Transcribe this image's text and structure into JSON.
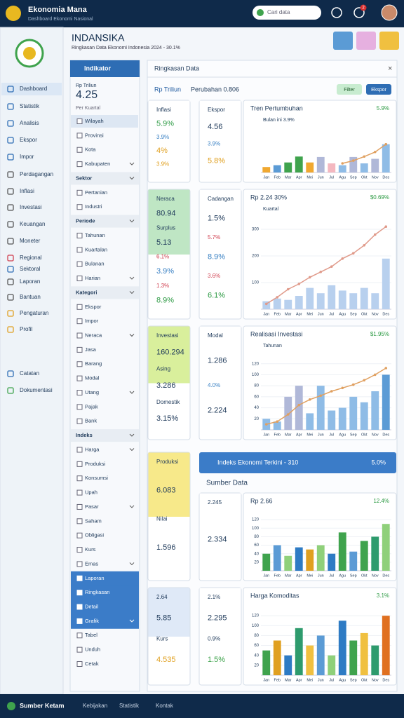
{
  "header": {
    "title": "Ekonomia Mana",
    "subtitle": "Dashboard Ekonomi Nasional",
    "search": "Cari data",
    "badge": "2"
  },
  "page": {
    "title": "INDANSIKA",
    "subtitle": "Ringkasan Data Ekonomi Indonesia 2024 - 30.1%"
  },
  "sidebar": [
    "Dashboard",
    "Statistik",
    "Analisis",
    "Ekspor",
    "Impor",
    "Perdagangan",
    "Inflasi",
    "Investasi",
    "Keuangan",
    "Moneter",
    "Regional",
    "Sektoral",
    "Laporan",
    "Bantuan",
    "Pengaturan",
    "Profil",
    "Catatan",
    "Dokumentasi"
  ],
  "filters": {
    "title": "Indikator",
    "value": "4.25",
    "unit": "Rp Triliun",
    "note": "Per Kuartal",
    "items": [
      {
        "label": "Wilayah",
        "style": "highlight"
      },
      "Provinsi",
      "Kota",
      "Kabupaten",
      {
        "label": "Sektor",
        "style": "header"
      },
      "Pertanian",
      "Industri",
      {
        "label": "Periode",
        "style": "header"
      },
      "Tahunan",
      "Kuartalan",
      "Bulanan",
      "Harian",
      {
        "label": "Kategori",
        "style": "header"
      },
      "Ekspor",
      "Impor",
      "Neraca",
      "Jasa",
      "Barang",
      "Modal",
      "Utang",
      "Pajak",
      "Bank",
      {
        "label": "Indeks",
        "style": "header"
      },
      "Harga",
      "Produksi",
      "Konsumsi",
      "Upah",
      "Pasar",
      "Saham",
      "Obligasi",
      "Kurs",
      "Emas",
      {
        "label": "Laporan",
        "style": "active"
      },
      {
        "label": "Ringkasan",
        "style": "active"
      },
      {
        "label": "Detail",
        "style": "active"
      },
      {
        "label": "Grafik",
        "style": "active"
      },
      "Tabel",
      "Unduh",
      "Cetak"
    ]
  },
  "main": {
    "title": "Ringkasan Data",
    "toolbar": "Rp Triliun",
    "toolbar_note": "Perubahan 0.806",
    "buttons": [
      "Filter",
      "Ekspor"
    ],
    "x_labels": [
      "Jan",
      "Feb",
      "Mar",
      "Apr",
      "Mei",
      "Jun",
      "Jul",
      "Agu",
      "Sep",
      "Okt",
      "Nov",
      "Des"
    ],
    "rows": [
      {
        "left": {
          "fill": "#ffffff",
          "items": [
            {
              "text": "Inflasi",
              "color": "#1f3a5a"
            },
            {
              "text": "5.9%",
              "color": "#2e9b45"
            },
            {
              "text": "3.9%",
              "color": "#3b82c4"
            },
            {
              "text": "4%",
              "color": "#e0a020"
            },
            {
              "text": "3.9%",
              "color": "#e0a020"
            }
          ]
        },
        "mid": {
          "fill": "#ffffff",
          "items": [
            {
              "text": "Ekspor",
              "color": "#1f3a5a"
            },
            {
              "text": "4.56",
              "color": "#1f3a5a"
            },
            {
              "text": "3.9%",
              "color": "#3b82c4"
            },
            {
              "text": "5.8%",
              "color": "#e0a020"
            }
          ]
        },
        "chart": {
          "title": "Tren Pertumbuhan",
          "badge": "5.9%",
          "note": "Bulan ini 3.9%",
          "ylim": [
            0,
            100
          ],
          "bars": [
            12,
            16,
            22,
            35,
            22,
            34,
            20,
            16,
            34,
            20,
            30,
            62
          ],
          "bar_colors": [
            "#f0a830",
            "#5b9bd5",
            "#3fa34d",
            "#3fa34d",
            "#f0a830",
            "#b0b8d8",
            "#f4b8c0",
            "#8fbce6",
            "#b0b8d8",
            "#8fbce6",
            "#b0b8d8",
            "#8fbce6"
          ],
          "line": [
            null,
            null,
            null,
            null,
            null,
            null,
            null,
            20,
            26,
            35,
            45,
            62
          ],
          "line_color": "#e0a060"
        }
      },
      {
        "left": {
          "fill": "#bfe6c4",
          "items": [
            {
              "text": "Neraca",
              "color": "#1f3a5a"
            },
            {
              "text": "80.94",
              "color": "#1f3a5a"
            },
            {
              "text": "Surplus",
              "color": "#1f3a5a"
            },
            {
              "text": "5.13",
              "color": "#1f3a5a"
            },
            {
              "text": "6.1%",
              "color": "#d04050"
            },
            {
              "text": "3.9%",
              "color": "#3b82c4"
            },
            {
              "text": "1.3%",
              "color": "#d04050"
            },
            {
              "text": "8.9%",
              "color": "#2e9b45"
            }
          ]
        },
        "mid": {
          "fill": "#ffffff",
          "items": [
            {
              "text": "Cadangan",
              "color": "#1f3a5a"
            },
            {
              "text": "1.5%",
              "color": "#1f3a5a"
            },
            {
              "text": "5.7%",
              "color": "#d04050"
            },
            {
              "text": "8.9%",
              "color": "#3b82c4"
            },
            {
              "text": "3.6%",
              "color": "#d04050"
            },
            {
              "text": "6.1%",
              "color": "#2e9b45"
            }
          ]
        },
        "chart": {
          "title": "Rp 2.24 30%",
          "badge": "$0.69%",
          "note": "Kuartal",
          "ylim": [
            0,
            350
          ],
          "yticks": [
            100,
            200,
            300
          ],
          "bars": [
            30,
            40,
            35,
            50,
            80,
            60,
            90,
            70,
            60,
            80,
            60,
            190
          ],
          "bar_colors": "#b8d0ee",
          "line": [
            20,
            45,
            75,
            95,
            120,
            140,
            160,
            190,
            210,
            240,
            280,
            310
          ],
          "line_color": "#e09a8a"
        }
      },
      {
        "left": {
          "fill": "#d9ef9c",
          "items": [
            {
              "text": "Investasi",
              "color": "#1f3a5a"
            },
            {
              "text": "160.294",
              "color": "#1f3a5a"
            },
            {
              "text": "Asing",
              "color": "#1f3a5a"
            },
            {
              "text": "3.286",
              "color": "#1f3a5a"
            },
            {
              "text": "Domestik",
              "color": "#1f3a5a"
            },
            {
              "text": "3.15%",
              "color": "#1f3a5a"
            }
          ]
        },
        "mid": {
          "fill": "#ffffff",
          "items": [
            {
              "text": "Modal",
              "color": "#1f3a5a"
            },
            {
              "text": "1.286",
              "color": "#1f3a5a"
            },
            {
              "text": "4.0%",
              "color": "#3b82c4"
            },
            {
              "text": "2.224",
              "color": "#1f3a5a"
            }
          ]
        },
        "chart": {
          "title": "Realisasi Investasi",
          "badge": "$1.95%",
          "note": "Tahunan",
          "ylim": [
            0,
            140
          ],
          "yticks": [
            20,
            40,
            60,
            80,
            100,
            120
          ],
          "bars": [
            20,
            15,
            60,
            80,
            30,
            80,
            35,
            40,
            60,
            50,
            70,
            100
          ],
          "bar_colors": [
            "#8fbce6",
            "#8fbce6",
            "#b0b8d8",
            "#b0b8d8",
            "#8fbce6",
            "#8fbce6",
            "#8fbce6",
            "#8fbce6",
            "#8fbce6",
            "#8fbce6",
            "#8fbce6",
            "#5b9bd5"
          ],
          "line": [
            10,
            15,
            28,
            45,
            55,
            62,
            70,
            76,
            82,
            90,
            100,
            112
          ],
          "line_color": "#e0a060"
        }
      },
      {
        "left": {
          "fill": "#f7e98a",
          "items": [
            {
              "text": "Produksi",
              "color": "#1f3a5a"
            },
            {
              "text": "6.083",
              "color": "#1f3a5a"
            },
            {
              "text": "Nilai",
              "color": "#1f3a5a"
            },
            {
              "text": "1.596",
              "color": "#1f3a5a"
            }
          ]
        },
        "mid": {
          "fill": "#ffffff",
          "items": [
            {
              "text": "2.245",
              "color": "#1f3a5a"
            },
            {
              "text": "2.334",
              "color": "#1f3a5a"
            }
          ]
        },
        "banner": {
          "text": "Indeks Ekonomi Terkini - 310",
          "right": "5.0%",
          "label": "Sumber Data"
        },
        "chart": {
          "title": "Rp 2.66",
          "badge": "12.4%",
          "ylim": [
            0,
            140
          ],
          "yticks": [
            20,
            40,
            60,
            80,
            100,
            120
          ],
          "bars": [
            40,
            60,
            35,
            55,
            50,
            60,
            40,
            90,
            45,
            70,
            80,
            110
          ],
          "bar_colors": [
            "#3fa34d",
            "#5b9bd5",
            "#8fd07a",
            "#2e7bc4",
            "#e0a020",
            "#8fd07a",
            "#2e7bc4",
            "#3fa34d",
            "#5b9bd5",
            "#3fa34d",
            "#2e9b6d",
            "#8fd07a"
          ]
        }
      },
      {
        "left": {
          "fill": "#dfe9f7",
          "items": [
            {
              "text": "2.64",
              "color": "#1f3a5a"
            },
            {
              "text": "5.85",
              "color": "#1f3a5a"
            },
            {
              "text": "Kurs",
              "color": "#1f3a5a"
            },
            {
              "text": "4.535",
              "color": "#e0a020"
            }
          ]
        },
        "mid": {
          "fill": "#ffffff",
          "items": [
            {
              "text": "2.1%",
              "color": "#1f3a5a"
            },
            {
              "text": "2.295",
              "color": "#1f3a5a"
            },
            {
              "text": "0.9%",
              "color": "#1f3a5a"
            },
            {
              "text": "1.5%",
              "color": "#3fa34d"
            }
          ]
        },
        "chart": {
          "title": "Harga Komoditas",
          "badge": "3.1%",
          "ylim": [
            0,
            140
          ],
          "yticks": [
            20,
            40,
            60,
            80,
            100,
            120
          ],
          "bars": [
            50,
            70,
            40,
            95,
            60,
            80,
            40,
            110,
            70,
            85,
            60,
            120
          ],
          "bar_colors": [
            "#3fa34d",
            "#e0a020",
            "#2e7bc4",
            "#2e9b6d",
            "#f0c040",
            "#5b9bd5",
            "#8fd07a",
            "#2e7bc4",
            "#3fa34d",
            "#f0c040",
            "#2e9b6d",
            "#e07020"
          ]
        }
      }
    ]
  },
  "footer": {
    "title": "Sumber Ketam",
    "links": [
      "Kebijakan",
      "Statistik",
      "Kontak"
    ]
  }
}
